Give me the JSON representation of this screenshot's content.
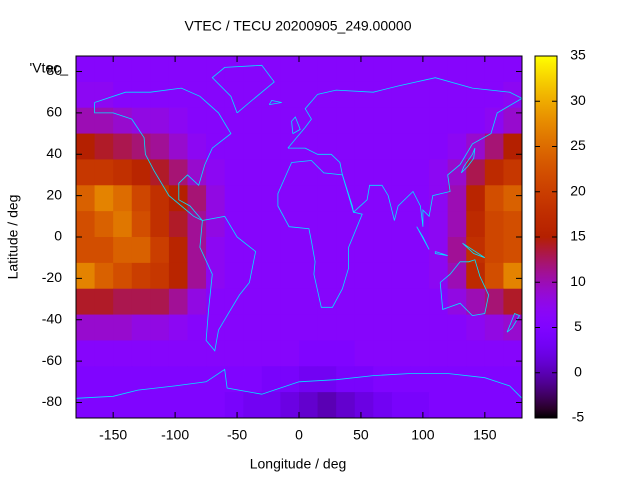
{
  "chart_data": {
    "type": "heatmap",
    "title": "VTEC / TECU 20200905_249.00000",
    "xlabel": "Longitude / deg",
    "ylabel": "Latitude / deg",
    "key_label": "'Vtec_",
    "x": [
      -172.5,
      -157.5,
      -142.5,
      -127.5,
      -112.5,
      -97.5,
      -82.5,
      -67.5,
      -52.5,
      -37.5,
      -22.5,
      -7.5,
      7.5,
      22.5,
      37.5,
      52.5,
      67.5,
      82.5,
      97.5,
      112.5,
      127.5,
      142.5,
      157.5,
      172.5
    ],
    "y": [
      81.25,
      68.75,
      56.25,
      43.75,
      31.25,
      18.75,
      6.25,
      -6.25,
      -18.75,
      -31.25,
      -43.75,
      -56.25,
      -68.75,
      -81.25
    ],
    "values": [
      [
        6,
        6,
        6,
        6,
        6,
        6,
        6,
        6,
        6,
        6,
        6,
        6,
        6,
        6,
        6,
        6,
        6,
        6,
        6,
        6,
        6,
        6,
        6,
        6
      ],
      [
        7,
        7,
        6,
        6,
        6,
        6,
        6,
        6,
        6,
        6,
        6,
        6,
        6,
        6,
        6,
        6,
        6,
        6,
        6,
        6,
        6,
        6,
        6,
        7
      ],
      [
        10,
        10,
        9,
        8,
        8,
        7,
        6,
        6,
        6,
        6,
        6,
        6,
        6,
        6,
        6,
        6,
        6,
        6,
        6,
        6,
        6,
        6,
        7,
        9
      ],
      [
        15,
        14,
        13,
        12,
        11,
        9,
        7,
        6,
        6,
        6,
        6,
        6,
        6,
        6,
        6,
        6,
        6,
        6,
        6,
        6,
        7,
        9,
        12,
        15
      ],
      [
        19,
        19,
        18,
        16,
        14,
        12,
        9,
        7,
        6,
        6,
        6,
        6,
        6,
        6,
        6,
        6,
        6,
        6,
        6,
        7,
        9,
        13,
        17,
        19
      ],
      [
        24,
        27,
        25,
        21,
        18,
        15,
        12,
        8,
        6,
        6,
        6,
        6,
        6,
        6,
        6,
        6,
        6,
        6,
        6,
        7,
        10,
        16,
        22,
        24
      ],
      [
        22,
        24,
        26,
        22,
        18,
        14,
        11,
        8,
        6,
        6,
        6,
        6,
        6,
        6,
        6,
        6,
        6,
        6,
        6,
        7,
        10,
        17,
        21,
        22
      ],
      [
        22,
        22,
        24,
        24,
        20,
        16,
        11,
        7,
        6,
        6,
        6,
        6,
        6,
        6,
        6,
        6,
        6,
        6,
        6,
        7,
        11,
        18,
        21,
        22
      ],
      [
        27,
        24,
        22,
        20,
        19,
        16,
        11,
        7,
        6,
        6,
        6,
        6,
        6,
        6,
        6,
        6,
        6,
        6,
        6,
        7,
        10,
        17,
        22,
        27
      ],
      [
        14,
        14,
        13,
        13,
        13,
        11,
        8,
        6,
        6,
        6,
        6,
        6,
        6,
        6,
        6,
        6,
        6,
        6,
        6,
        6,
        8,
        10,
        12,
        14
      ],
      [
        9,
        9,
        9,
        8,
        8,
        7,
        6,
        6,
        6,
        6,
        6,
        6,
        6,
        6,
        6,
        6,
        6,
        6,
        6,
        6,
        6,
        7,
        8,
        9
      ],
      [
        6,
        6,
        6,
        6,
        6,
        6,
        6,
        6,
        6,
        6,
        6,
        6,
        5,
        5,
        5,
        6,
        6,
        6,
        6,
        6,
        6,
        6,
        6,
        6
      ],
      [
        5,
        5,
        5,
        5,
        5,
        5,
        5,
        5,
        5,
        5,
        4,
        4,
        3,
        3,
        4,
        4,
        5,
        5,
        5,
        5,
        5,
        5,
        5,
        5
      ],
      [
        5,
        5,
        5,
        5,
        5,
        5,
        5,
        5,
        4,
        3,
        3,
        2,
        1,
        0,
        1,
        2,
        3,
        4,
        4,
        5,
        5,
        5,
        5,
        5
      ]
    ],
    "xlim": [
      -180,
      180
    ],
    "ylim": [
      -87.5,
      87.5
    ],
    "xticks": [
      -150,
      -100,
      -50,
      0,
      50,
      100,
      150
    ],
    "yticks": [
      -80,
      -60,
      -40,
      -20,
      0,
      20,
      40,
      60,
      80
    ],
    "zlim": [
      -5,
      35
    ],
    "zticks": [
      -5,
      0,
      5,
      10,
      15,
      20,
      25,
      30,
      35
    ],
    "colorbar": true,
    "palette": "rgbformulae 7,5,15"
  }
}
